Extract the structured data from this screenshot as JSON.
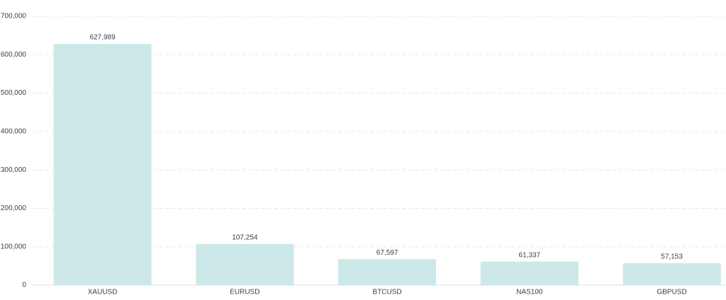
{
  "chart_data": {
    "type": "bar",
    "categories": [
      "XAUUSD",
      "EURUSD",
      "BTCUSD",
      "NAS100",
      "GBPUSD"
    ],
    "values": [
      627989,
      107254,
      67597,
      61337,
      57153
    ],
    "value_labels": [
      "627,989",
      "107,254",
      "67,597",
      "61,337",
      "57,153"
    ],
    "color": "#cde8e9",
    "ylim": [
      0,
      700000
    ],
    "yticks": [
      0,
      {
        "value": 100000,
        "label": "100,000"
      },
      {
        "value": 200000,
        "label": "200,000"
      },
      {
        "value": 300000,
        "label": "300,000"
      },
      {
        "value": 400000,
        "label": "400,000"
      },
      {
        "value": 500000,
        "label": "500,000"
      },
      {
        "value": 600000,
        "label": "600,000"
      },
      {
        "value": 700000,
        "label": "700,000"
      }
    ],
    "grid": true
  }
}
